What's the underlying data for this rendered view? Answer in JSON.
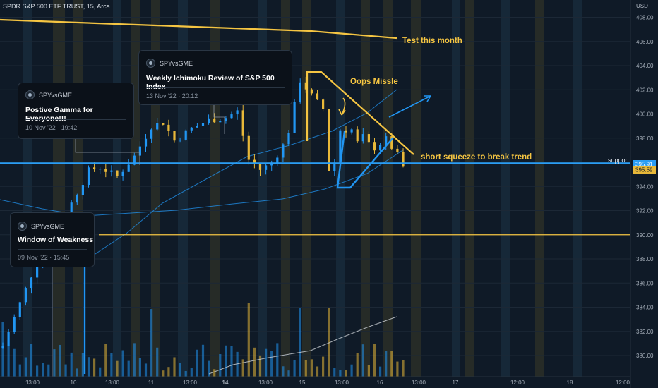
{
  "header": {
    "symbol_title": "SPDR S&P 500 ETF TRUST, 15, Arca",
    "currency": "USD"
  },
  "axes": {
    "y_ticks": [
      "408.00",
      "406.00",
      "404.00",
      "402.00",
      "400.00",
      "398.00",
      "396.00",
      "394.00",
      "392.00",
      "390.00",
      "388.00",
      "386.00",
      "384.00",
      "382.00",
      "380.00"
    ],
    "x_ticks": [
      {
        "label": "13:00",
        "bold": false
      },
      {
        "label": "10",
        "bold": false
      },
      {
        "label": "13:00",
        "bold": false
      },
      {
        "label": "11",
        "bold": false
      },
      {
        "label": "13:00",
        "bold": false
      },
      {
        "label": "14",
        "bold": true
      },
      {
        "label": "13:00",
        "bold": false
      },
      {
        "label": "15",
        "bold": false
      },
      {
        "label": "13:00",
        "bold": false
      },
      {
        "label": "16",
        "bold": false
      },
      {
        "label": "13:00",
        "bold": false
      },
      {
        "label": "17",
        "bold": false
      },
      {
        "label": "12:00",
        "bold": false
      },
      {
        "label": "18",
        "bold": false
      },
      {
        "label": "12:00",
        "bold": false
      }
    ]
  },
  "price_chips": {
    "support_label": "support",
    "support_price": "395.91",
    "last_price": "395.59"
  },
  "annotations": {
    "test_this_month": "Test this month",
    "oops_missle": "Oops Missle",
    "short_squeeze": "short squeeze to break trend"
  },
  "ideas": [
    {
      "author": "SPYvsGME",
      "title": "Weekly Ichimoku Review of S&P 500 Index",
      "date": "13 Nov '22 · 20:12"
    },
    {
      "author": "SPYvsGME",
      "title": "Postive Gamma for Everyone!!!",
      "date": "10 Nov '22 · 19:42"
    },
    {
      "author": "SPYvsGME",
      "title": "Window of Weakness",
      "date": "09 Nov '22 · 15:45"
    }
  ],
  "colors": {
    "background": "#0f1a27",
    "bull": "#2196f3",
    "bear": "#e8b839",
    "trendline": "#f5c542",
    "support_line": "#2a9df4",
    "session_band": "#3a3a28"
  },
  "chart_data": {
    "type": "candlestick",
    "symbol": "SPDR S&P 500 ETF TRUST, 15, Arca",
    "ylim": [
      379,
      409
    ],
    "horizontal_levels": [
      {
        "label": "support",
        "value": 395.91
      },
      {
        "value": 390.0
      }
    ],
    "last_price": 395.59,
    "path_knots": [
      [
        0,
        380.8
      ],
      [
        4,
        385.5
      ],
      [
        6,
        387.8
      ],
      [
        9,
        389.3
      ],
      [
        12,
        392.6
      ],
      [
        15,
        395.3
      ],
      [
        17,
        395.6
      ],
      [
        20,
        394.8
      ],
      [
        23,
        396.5
      ],
      [
        26,
        399.0
      ],
      [
        28,
        399.3
      ],
      [
        30,
        397.8
      ],
      [
        33,
        398.8
      ],
      [
        36,
        399.5
      ],
      [
        39,
        399.7
      ],
      [
        41,
        400.2
      ],
      [
        43,
        396.2
      ],
      [
        45,
        395.4
      ],
      [
        47,
        395.9
      ],
      [
        49,
        397.4
      ],
      [
        50,
        398.6
      ],
      [
        52,
        402.8
      ],
      [
        54,
        401.5
      ],
      [
        56,
        400.4
      ],
      [
        57,
        395.4
      ],
      [
        58,
        396.0
      ],
      [
        59,
        398.7
      ],
      [
        61,
        398.7
      ],
      [
        62,
        397.6
      ],
      [
        63,
        398.1
      ],
      [
        64,
        397.5
      ],
      [
        65,
        397.2
      ],
      [
        67,
        397.9
      ],
      [
        69,
        396.6
      ],
      [
        70,
        395.6
      ]
    ]
  }
}
